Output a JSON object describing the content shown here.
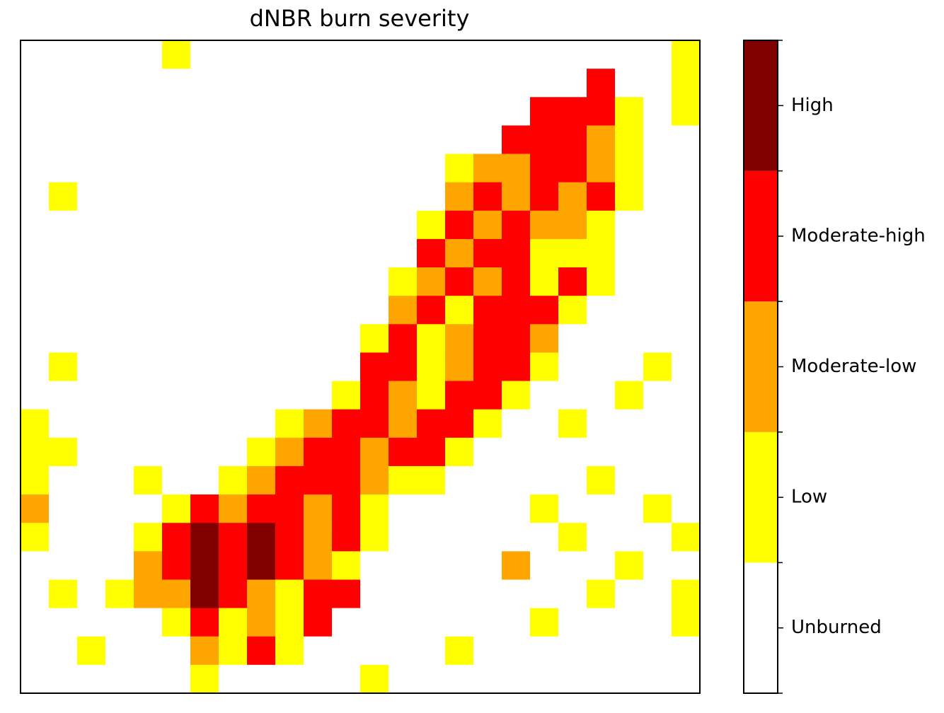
{
  "chart_data": {
    "type": "heatmap",
    "title": "dNBR burn severity",
    "values": [
      [
        0,
        0,
        0,
        0,
        0,
        1,
        0,
        0,
        0,
        0,
        0,
        0,
        0,
        0,
        0,
        0,
        0,
        0,
        0,
        0,
        0,
        0,
        0,
        1
      ],
      [
        0,
        0,
        0,
        0,
        0,
        0,
        0,
        0,
        0,
        0,
        0,
        0,
        0,
        0,
        0,
        0,
        0,
        0,
        0,
        0,
        3,
        0,
        0,
        1
      ],
      [
        0,
        0,
        0,
        0,
        0,
        0,
        0,
        0,
        0,
        0,
        0,
        0,
        0,
        0,
        0,
        0,
        0,
        0,
        3,
        3,
        3,
        1,
        0,
        1
      ],
      [
        0,
        0,
        0,
        0,
        0,
        0,
        0,
        0,
        0,
        0,
        0,
        0,
        0,
        0,
        0,
        0,
        0,
        3,
        3,
        3,
        2,
        1,
        0,
        0
      ],
      [
        0,
        0,
        0,
        0,
        0,
        0,
        0,
        0,
        0,
        0,
        0,
        0,
        0,
        0,
        0,
        1,
        2,
        2,
        3,
        3,
        2,
        1,
        0,
        0
      ],
      [
        0,
        1,
        0,
        0,
        0,
        0,
        0,
        0,
        0,
        0,
        0,
        0,
        0,
        0,
        0,
        2,
        3,
        2,
        3,
        2,
        3,
        1,
        0,
        0
      ],
      [
        0,
        0,
        0,
        0,
        0,
        0,
        0,
        0,
        0,
        0,
        0,
        0,
        0,
        0,
        1,
        3,
        2,
        3,
        2,
        2,
        1,
        0,
        0,
        0
      ],
      [
        0,
        0,
        0,
        0,
        0,
        0,
        0,
        0,
        0,
        0,
        0,
        0,
        0,
        0,
        3,
        2,
        3,
        3,
        1,
        1,
        1,
        0,
        0,
        0
      ],
      [
        0,
        0,
        0,
        0,
        0,
        0,
        0,
        0,
        0,
        0,
        0,
        0,
        0,
        1,
        2,
        3,
        2,
        3,
        1,
        3,
        1,
        0,
        0,
        0
      ],
      [
        0,
        0,
        0,
        0,
        0,
        0,
        0,
        0,
        0,
        0,
        0,
        0,
        0,
        2,
        3,
        1,
        3,
        3,
        3,
        1,
        0,
        0,
        0,
        0
      ],
      [
        0,
        0,
        0,
        0,
        0,
        0,
        0,
        0,
        0,
        0,
        0,
        0,
        1,
        3,
        1,
        2,
        3,
        3,
        2,
        0,
        0,
        0,
        0,
        0
      ],
      [
        0,
        1,
        0,
        0,
        0,
        0,
        0,
        0,
        0,
        0,
        0,
        0,
        3,
        3,
        1,
        2,
        3,
        3,
        1,
        0,
        0,
        0,
        1,
        0
      ],
      [
        0,
        0,
        0,
        0,
        0,
        0,
        0,
        0,
        0,
        0,
        0,
        1,
        3,
        2,
        1,
        3,
        3,
        1,
        0,
        0,
        0,
        1,
        0,
        0
      ],
      [
        1,
        0,
        0,
        0,
        0,
        0,
        0,
        0,
        0,
        1,
        2,
        3,
        3,
        2,
        3,
        3,
        1,
        0,
        0,
        1,
        0,
        0,
        0,
        0
      ],
      [
        1,
        1,
        0,
        0,
        0,
        0,
        0,
        0,
        1,
        2,
        3,
        3,
        2,
        3,
        3,
        1,
        0,
        0,
        0,
        0,
        0,
        0,
        0,
        0
      ],
      [
        1,
        0,
        0,
        0,
        1,
        0,
        0,
        1,
        2,
        3,
        3,
        3,
        2,
        1,
        1,
        0,
        0,
        0,
        0,
        0,
        1,
        0,
        0,
        0
      ],
      [
        2,
        0,
        0,
        0,
        0,
        1,
        3,
        2,
        3,
        3,
        2,
        3,
        1,
        0,
        0,
        0,
        0,
        0,
        1,
        0,
        0,
        0,
        1,
        0
      ],
      [
        1,
        0,
        0,
        0,
        1,
        3,
        4,
        3,
        4,
        3,
        2,
        3,
        1,
        0,
        0,
        0,
        0,
        0,
        0,
        1,
        0,
        0,
        0,
        1
      ],
      [
        0,
        0,
        0,
        0,
        2,
        3,
        4,
        3,
        4,
        3,
        2,
        1,
        0,
        0,
        0,
        0,
        0,
        2,
        0,
        0,
        0,
        1,
        0,
        0
      ],
      [
        0,
        1,
        0,
        1,
        2,
        2,
        4,
        3,
        2,
        1,
        3,
        3,
        0,
        0,
        0,
        0,
        0,
        0,
        0,
        0,
        1,
        0,
        0,
        1
      ],
      [
        0,
        0,
        0,
        0,
        0,
        1,
        3,
        1,
        2,
        1,
        3,
        0,
        0,
        0,
        0,
        0,
        0,
        0,
        1,
        0,
        0,
        0,
        0,
        1
      ],
      [
        0,
        0,
        1,
        0,
        0,
        0,
        2,
        1,
        3,
        1,
        0,
        0,
        0,
        0,
        0,
        1,
        0,
        0,
        0,
        0,
        0,
        0,
        0,
        0
      ],
      [
        0,
        0,
        0,
        0,
        0,
        0,
        1,
        0,
        0,
        0,
        0,
        0,
        1,
        0,
        0,
        0,
        0,
        0,
        0,
        0,
        0,
        0,
        0,
        0
      ]
    ],
    "colors": [
      "#ffffff",
      "#ffff00",
      "#ffa500",
      "#ff0000",
      "#800000"
    ],
    "clim": [
      -0.5,
      4.5
    ],
    "cticks": [
      {
        "value": 0,
        "label": "Unburned"
      },
      {
        "value": 1,
        "label": "Low"
      },
      {
        "value": 2,
        "label": "Moderate-low"
      },
      {
        "value": 3,
        "label": "Moderate-high"
      },
      {
        "value": 4,
        "label": "High"
      }
    ]
  }
}
